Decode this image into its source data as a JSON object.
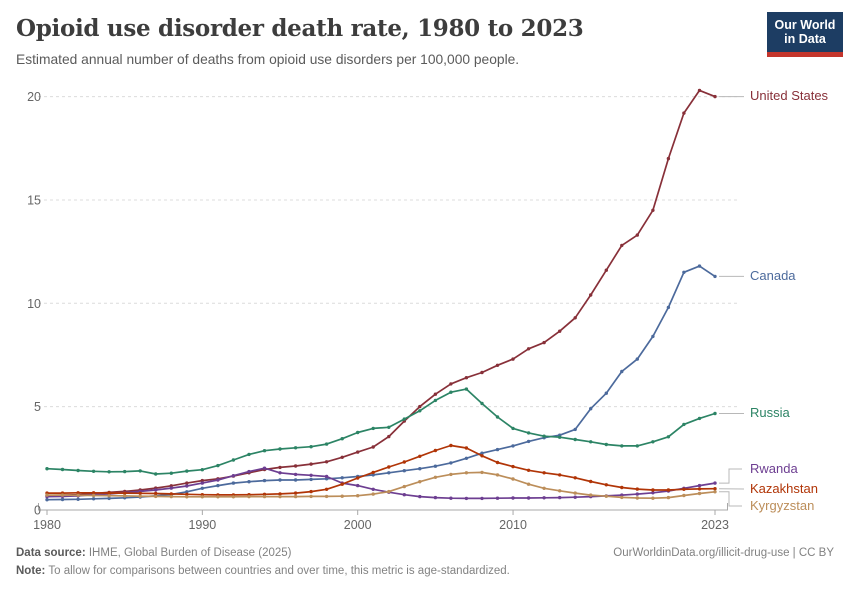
{
  "header": {
    "title": "Opioid use disorder death rate, 1980 to 2023",
    "subtitle": "Estimated annual number of deaths from opioid use disorders per 100,000 people.",
    "logo_line1": "Our World",
    "logo_line2": "in Data"
  },
  "footer": {
    "source_label": "Data source:",
    "source_text": " IHME, Global Burden of Disease (2025)",
    "link_text": "OurWorldinData.org/illicit-drug-use | CC BY",
    "note_label": "Note:",
    "note_text": " To allow for comparisons between countries and over time, this metric is age-standardized."
  },
  "chart_data": {
    "type": "line",
    "title": "Opioid use disorder death rate, 1980 to 2023",
    "xlabel": "",
    "ylabel": "Estimated annual deaths from opioid use disorders per 100,000 people",
    "x": [
      1980,
      1981,
      1982,
      1983,
      1984,
      1985,
      1986,
      1987,
      1988,
      1989,
      1990,
      1991,
      1992,
      1993,
      1994,
      1995,
      1996,
      1997,
      1998,
      1999,
      2000,
      2001,
      2002,
      2003,
      2004,
      2005,
      2006,
      2007,
      2008,
      2009,
      2010,
      2011,
      2012,
      2013,
      2014,
      2015,
      2016,
      2017,
      2018,
      2019,
      2020,
      2021,
      2022,
      2023
    ],
    "xticks": [
      1980,
      1990,
      2000,
      2010,
      2023
    ],
    "yticks": [
      0,
      5,
      10,
      15,
      20
    ],
    "ylim": [
      0,
      20
    ],
    "grid": "horizontal-dashed",
    "legend_position": "right-of-line-end",
    "series": [
      {
        "name": "United States",
        "color": "#883039",
        "values": [
          0.7,
          0.72,
          0.74,
          0.8,
          0.85,
          0.9,
          0.97,
          1.06,
          1.17,
          1.3,
          1.42,
          1.51,
          1.64,
          1.8,
          1.96,
          2.06,
          2.13,
          2.22,
          2.33,
          2.55,
          2.8,
          3.05,
          3.55,
          4.3,
          5.0,
          5.6,
          6.1,
          6.4,
          6.65,
          7.0,
          7.3,
          7.8,
          8.1,
          8.65,
          9.3,
          10.4,
          11.6,
          12.8,
          13.3,
          14.5,
          17.0,
          19.2,
          20.3,
          20.0
        ]
      },
      {
        "name": "Canada",
        "color": "#4C6A9C",
        "values": [
          0.5,
          0.51,
          0.52,
          0.54,
          0.56,
          0.59,
          0.63,
          0.68,
          0.75,
          0.88,
          1.05,
          1.18,
          1.3,
          1.37,
          1.42,
          1.45,
          1.45,
          1.48,
          1.51,
          1.56,
          1.62,
          1.7,
          1.8,
          1.9,
          2.0,
          2.12,
          2.28,
          2.5,
          2.75,
          2.92,
          3.1,
          3.32,
          3.5,
          3.62,
          3.9,
          4.9,
          5.65,
          6.7,
          7.3,
          8.4,
          9.8,
          11.5,
          11.8,
          11.3
        ]
      },
      {
        "name": "Russia",
        "color": "#2C8465",
        "values": [
          2.0,
          1.96,
          1.91,
          1.87,
          1.85,
          1.86,
          1.89,
          1.74,
          1.78,
          1.88,
          1.95,
          2.15,
          2.42,
          2.69,
          2.87,
          2.95,
          3.01,
          3.06,
          3.19,
          3.45,
          3.75,
          3.95,
          4.0,
          4.4,
          4.8,
          5.3,
          5.7,
          5.85,
          5.15,
          4.5,
          3.95,
          3.73,
          3.57,
          3.52,
          3.41,
          3.3,
          3.17,
          3.1,
          3.1,
          3.3,
          3.54,
          4.14,
          4.43,
          4.67
        ]
      },
      {
        "name": "Rwanda",
        "color": "#6D3E91",
        "values": [
          0.65,
          0.66,
          0.68,
          0.74,
          0.78,
          0.84,
          0.9,
          0.97,
          1.06,
          1.16,
          1.3,
          1.45,
          1.66,
          1.86,
          2.02,
          1.8,
          1.72,
          1.68,
          1.62,
          1.3,
          1.18,
          1.0,
          0.86,
          0.74,
          0.65,
          0.6,
          0.57,
          0.56,
          0.56,
          0.57,
          0.58,
          0.58,
          0.59,
          0.6,
          0.62,
          0.65,
          0.68,
          0.72,
          0.77,
          0.83,
          0.92,
          1.05,
          1.18,
          1.3
        ]
      },
      {
        "name": "Kazakhstan",
        "color": "#B13507",
        "values": [
          0.82,
          0.82,
          0.83,
          0.83,
          0.82,
          0.82,
          0.81,
          0.8,
          0.78,
          0.76,
          0.74,
          0.73,
          0.73,
          0.74,
          0.76,
          0.78,
          0.82,
          0.89,
          1.0,
          1.25,
          1.55,
          1.82,
          2.08,
          2.32,
          2.6,
          2.88,
          3.12,
          3.0,
          2.62,
          2.3,
          2.1,
          1.92,
          1.8,
          1.7,
          1.56,
          1.38,
          1.22,
          1.09,
          1.01,
          0.97,
          0.97,
          1.0,
          1.02,
          1.03
        ]
      },
      {
        "name": "Kyrgyzstan",
        "color": "#BC8E5A",
        "values": [
          0.72,
          0.72,
          0.71,
          0.7,
          0.69,
          0.68,
          0.67,
          0.66,
          0.65,
          0.64,
          0.64,
          0.64,
          0.64,
          0.65,
          0.65,
          0.65,
          0.65,
          0.66,
          0.66,
          0.67,
          0.69,
          0.77,
          0.89,
          1.13,
          1.37,
          1.58,
          1.72,
          1.8,
          1.82,
          1.7,
          1.5,
          1.25,
          1.05,
          0.93,
          0.82,
          0.72,
          0.67,
          0.61,
          0.58,
          0.57,
          0.6,
          0.7,
          0.8,
          0.88
        ]
      }
    ]
  }
}
